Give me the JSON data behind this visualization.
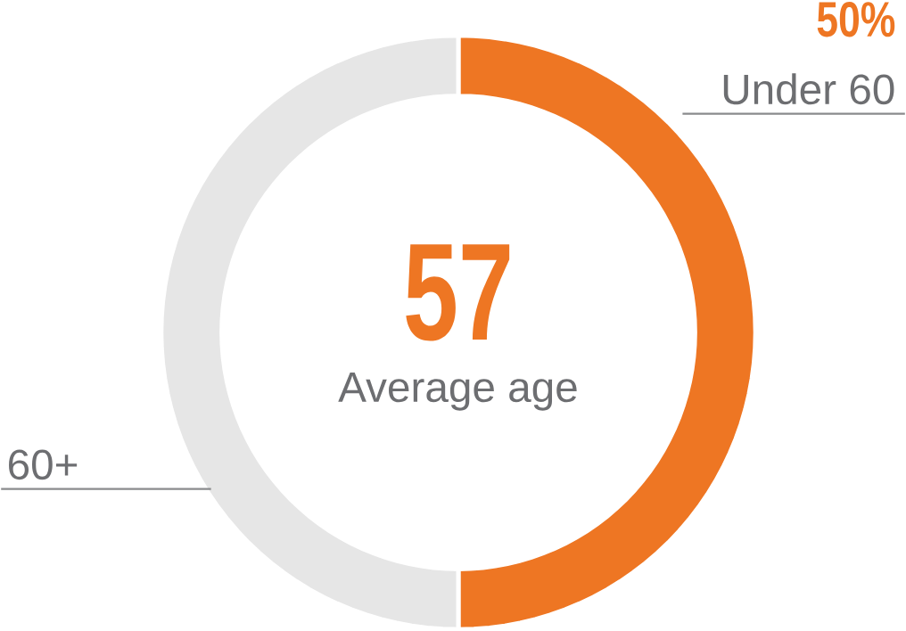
{
  "chart_data": {
    "type": "donut",
    "categories": [
      "Under 60",
      "60+"
    ],
    "values": [
      50,
      50
    ],
    "colors": [
      "#ee7623",
      "#e6e6e6"
    ],
    "value_labels": [
      "50%",
      null
    ],
    "annotations": [
      "57",
      "Average age"
    ]
  }
}
